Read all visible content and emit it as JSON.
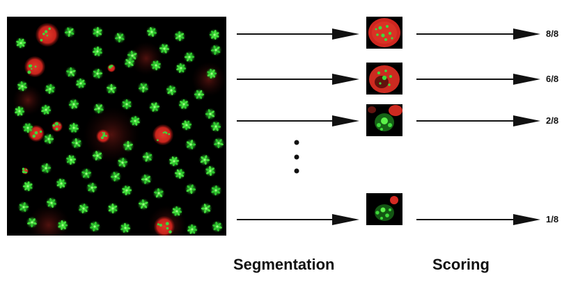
{
  "labels": {
    "segmentation": "Segmentation",
    "scoring": "Scoring"
  },
  "scores": [
    "8/8",
    "6/8",
    "2/8",
    "1/8"
  ],
  "colors": {
    "background": "#000000",
    "nucleus": "#d42a22",
    "cell": "#2fc92f",
    "arrow": "#111111"
  }
}
